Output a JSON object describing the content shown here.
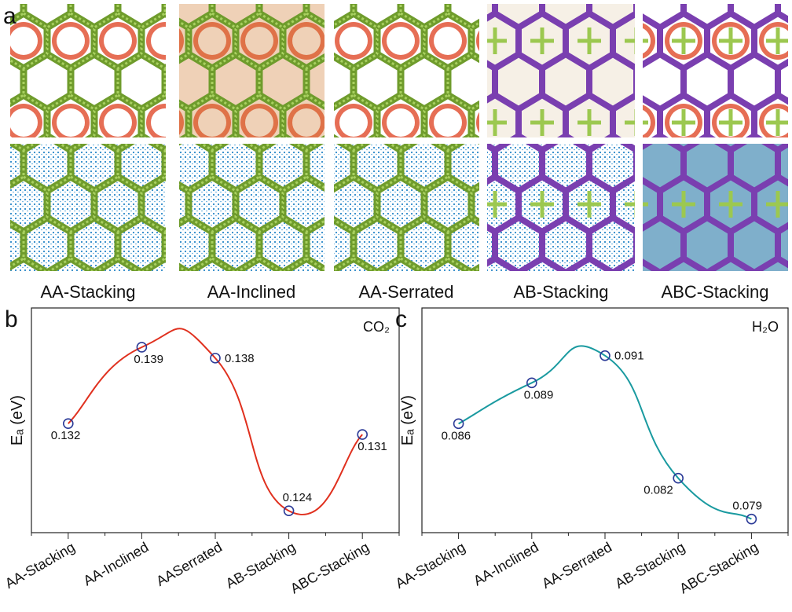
{
  "panel_a": {
    "label": "a",
    "structures": [
      "AA-Stacking",
      "AA-Inclined",
      "AA-Serrated",
      "AB-Stacking",
      "ABC-Stacking"
    ]
  },
  "chart_data": [
    {
      "type": "line",
      "panel_label": "b",
      "annotation": "CO₂",
      "y_label": "Eₐ (eV)",
      "categories": [
        "AA-Stacking",
        "AA-Inclined",
        "AASerrated",
        "AB-Stacking",
        "ABC-Stacking"
      ],
      "values": [
        0.132,
        0.139,
        0.138,
        0.124,
        0.131
      ],
      "color": "#e0301e",
      "marker_color": "#2b3a97",
      "ylim": [
        0.122,
        0.1426
      ]
    },
    {
      "type": "line",
      "panel_label": "c",
      "annotation": "H₂O",
      "y_label": "Eₐ (eV)",
      "categories": [
        "AA-Stacking",
        "AA-Inclined",
        "AA-Serrated",
        "AB-Stacking",
        "ABC-Stacking"
      ],
      "values": [
        0.086,
        0.089,
        0.091,
        0.082,
        0.079
      ],
      "color": "#1a9aa0",
      "marker_color": "#2b3a97",
      "ylim": [
        0.078,
        0.0945
      ]
    }
  ]
}
